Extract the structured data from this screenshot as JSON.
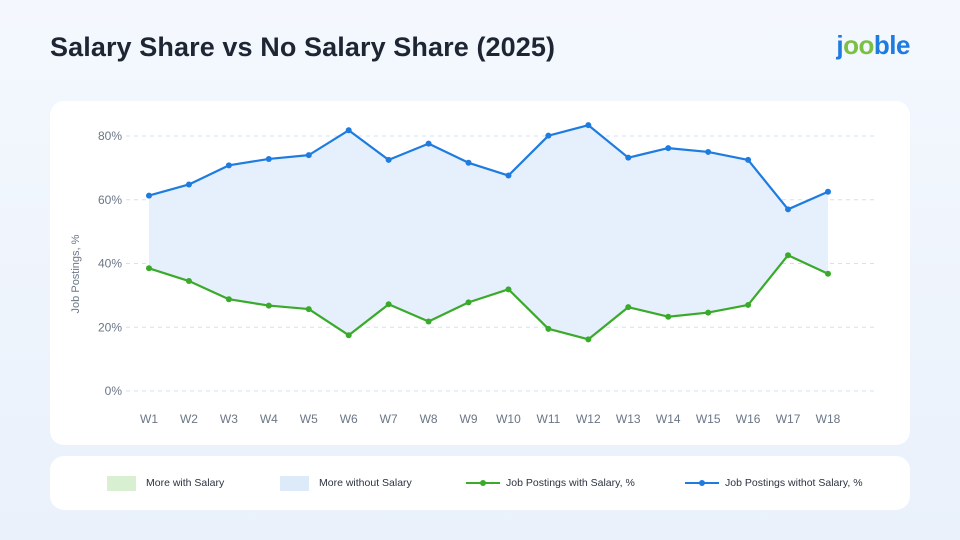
{
  "header": {
    "title": "Salary Share vs No Salary Share (2025)",
    "logo_text": {
      "j": "j",
      "oo": "oo",
      "rest": "ble"
    }
  },
  "colors": {
    "salary_line": "#3aaa2a",
    "no_salary_line": "#1e7be0",
    "more_with_salary_fill": "#d8efd2",
    "more_without_salary_fill": "#e5f0fc",
    "grid": "#cfe3f5"
  },
  "legend": {
    "more_with_salary": "More with Salary",
    "more_without_salary": "More without Salary",
    "with_salary_line": "Job Postings with Salary, %",
    "without_salary_line": "Job Postings withot Salary, %"
  },
  "chart_data": {
    "type": "line",
    "title": "Salary Share vs No Salary Share (2025)",
    "xlabel": "",
    "ylabel": "Job Postings, %",
    "categories": [
      "W1",
      "W2",
      "W3",
      "W4",
      "W5",
      "W6",
      "W7",
      "W8",
      "W9",
      "W10",
      "W11",
      "W12",
      "W13",
      "W14",
      "W15",
      "W16",
      "W17",
      "W18"
    ],
    "ylim": [
      0,
      80
    ],
    "yticks": [
      0,
      20,
      40,
      60,
      80
    ],
    "ytick_labels": [
      "0%",
      "20%",
      "40%",
      "60%",
      "80%"
    ],
    "grid": true,
    "legend_position": "bottom",
    "series": [
      {
        "name": "Job Postings with Salary, %",
        "values": [
          38.5,
          34.5,
          28.8,
          26.8,
          25.7,
          17.5,
          27.2,
          21.8,
          27.8,
          31.9,
          19.5,
          16.2,
          26.3,
          23.3,
          24.6,
          27.0,
          42.6,
          36.8
        ]
      },
      {
        "name": "Job Postings withot Salary, %",
        "values": [
          61.3,
          64.8,
          70.8,
          72.8,
          74.0,
          81.8,
          72.5,
          77.6,
          71.6,
          67.6,
          80.1,
          83.4,
          73.2,
          76.2,
          75.0,
          72.5,
          57.0,
          62.5
        ]
      }
    ]
  }
}
